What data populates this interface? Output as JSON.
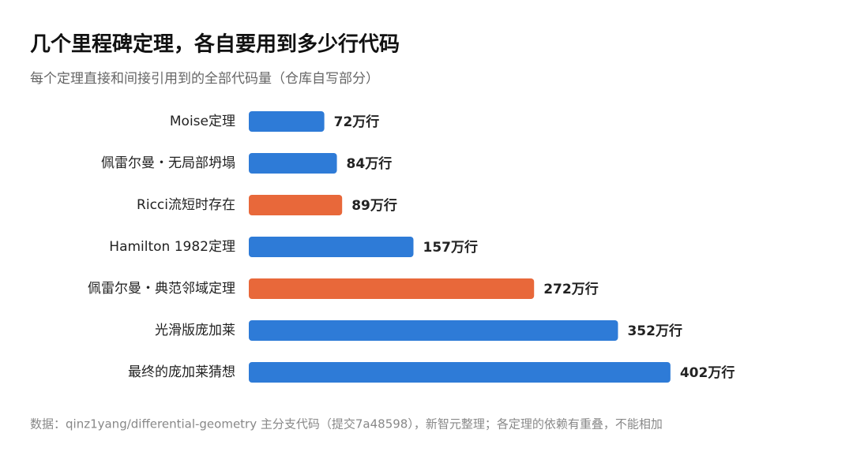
{
  "chart_data": {
    "type": "bar",
    "title": "几个里程碑定理，各自要用到多少行代码",
    "subtitle": "每个定理直接和间接引用到的全部代码量（仓库自写部分）",
    "source": "数据：qinz1yang/differential-geometry 主分支代码（提交7a48598），新智元整理；各定理的依赖有重叠，不能相加",
    "categories": [
      "Moise定理",
      "佩雷尔曼・无局部坍塌",
      "Ricci流短时存在",
      "Hamilton 1982定理",
      "佩雷尔曼・典范邻域定理",
      "光滑版庞加莱",
      "最终的庞加莱猜想"
    ],
    "values": [
      72,
      84,
      89,
      157,
      272,
      352,
      402
    ],
    "value_labels": [
      "72万行",
      "84万行",
      "89万行",
      "157万行",
      "272万行",
      "352万行",
      "402万行"
    ],
    "colors": [
      "#2e7bd7",
      "#2e7bd7",
      "#e8683a",
      "#2e7bd7",
      "#e8683a",
      "#2e7bd7",
      "#2e7bd7"
    ]
  }
}
